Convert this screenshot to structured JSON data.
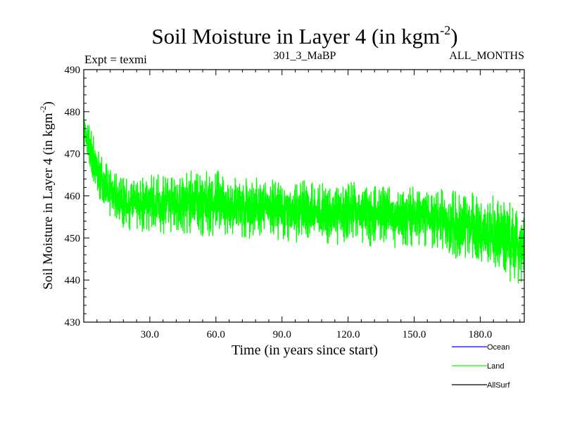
{
  "chart_data": {
    "type": "line",
    "title": "Soil Moisture in Layer 4 (in kgm",
    "title_sup": "-2",
    "title_close": ")",
    "subtitle_left": "Expt = texmi",
    "subtitle_center": "301_3_MaBP",
    "subtitle_right": "ALL_MONTHS",
    "xlabel": "Time (in years since start)",
    "ylabel": "Soil Moisture in Layer 4 (in kgm",
    "ylabel_sup": "-2",
    "ylabel_close": ")",
    "xlim": [
      0,
      200
    ],
    "ylim": [
      430,
      490
    ],
    "x_ticks": [
      30,
      60,
      90,
      120,
      150,
      180
    ],
    "x_tick_labels": [
      "30.0",
      "60.0",
      "90.0",
      "120.0",
      "150.0",
      "180.0"
    ],
    "y_ticks": [
      430,
      440,
      450,
      460,
      470,
      480,
      490
    ],
    "y_tick_labels": [
      "430",
      "440",
      "450",
      "460",
      "470",
      "480",
      "490"
    ],
    "legend": [
      {
        "name": "Ocean",
        "color": "#0000ff"
      },
      {
        "name": "Land",
        "color": "#00ff00"
      },
      {
        "name": "AllSurf",
        "color": "#000000"
      }
    ],
    "series": [
      {
        "name": "Land",
        "color": "#00ff00",
        "x": [
          0,
          1,
          2,
          3,
          4,
          5,
          6,
          7,
          8,
          9,
          10,
          11,
          12,
          13,
          14,
          15,
          16,
          17,
          18,
          19,
          20,
          25,
          30,
          35,
          40,
          45,
          50,
          55,
          60,
          65,
          70,
          75,
          80,
          85,
          90,
          95,
          100,
          105,
          110,
          115,
          120,
          125,
          130,
          135,
          140,
          145,
          150,
          155,
          160,
          165,
          170,
          175,
          180,
          185,
          190,
          195,
          200
        ],
        "y": [
          476,
          474,
          472,
          471,
          469,
          468,
          466,
          465,
          464,
          463,
          462,
          461.5,
          461,
          460.5,
          460,
          459.5,
          459,
          458.7,
          458.5,
          458.3,
          458,
          458,
          458.5,
          458,
          458.5,
          458,
          459,
          458,
          458.5,
          458,
          457.5,
          457,
          457.5,
          457,
          456.5,
          456,
          456.5,
          456,
          456,
          455.5,
          457,
          456.5,
          455,
          455.5,
          455,
          454.5,
          455.5,
          455,
          454.5,
          454,
          453,
          452.5,
          452,
          451,
          450.5,
          448,
          447
        ],
        "amplitude": [
          4,
          4,
          4.5,
          5,
          5,
          5,
          5,
          5,
          5,
          5,
          5,
          5,
          5,
          5,
          5,
          5,
          5,
          5,
          5,
          5,
          5,
          5.5,
          6,
          6,
          6,
          6,
          6.5,
          6.5,
          6.5,
          6,
          6,
          6,
          6,
          6,
          6,
          6,
          6,
          6,
          6,
          6,
          6.5,
          6,
          6,
          6,
          6,
          6,
          6,
          6,
          6,
          6.5,
          7,
          7,
          7,
          7.5,
          8,
          8,
          7
        ],
        "samples_per_year": 12,
        "waviness": 4,
        "seed": 7
      }
    ]
  }
}
